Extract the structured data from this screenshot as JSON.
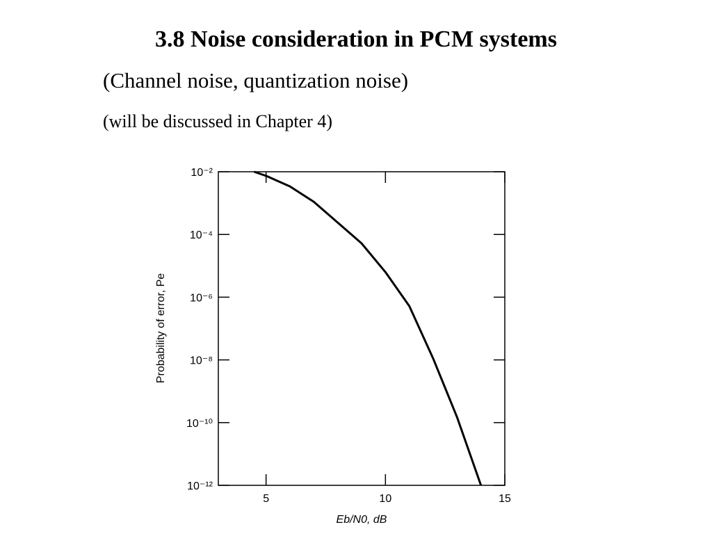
{
  "slide": {
    "title": "3.8 Noise consideration in PCM systems",
    "subtitle": "(Channel noise,  quantization noise)",
    "note": "(will be discussed in Chapter 4)"
  },
  "chart_data": {
    "type": "line",
    "xlabel": "Eb/N0, dB",
    "ylabel": "Probability of error, Pe",
    "x": [
      4.5,
      5,
      6,
      7,
      8,
      9,
      10,
      11,
      12,
      13,
      14
    ],
    "series": [
      {
        "name": "Pe",
        "color": "#000000",
        "values": [
          0.01,
          0.0074,
          0.0034,
          0.0011,
          0.00024,
          5.2e-05,
          6.3e-06,
          5.2e-07,
          1.1e-08,
          1.5e-10,
          1e-12
        ]
      }
    ],
    "xlim": [
      3,
      15
    ],
    "xticks": [
      5,
      10,
      15
    ],
    "ylim": [
      1e-12,
      0.01
    ],
    "yscale": "log",
    "yticks": [
      {
        "value": 1e-12,
        "label": "10⁻¹²"
      },
      {
        "value": 1e-10,
        "label": "10⁻¹⁰"
      },
      {
        "value": 1e-08,
        "label": "10⁻⁸"
      },
      {
        "value": 1e-06,
        "label": "10⁻⁶"
      },
      {
        "value": 0.0001,
        "label": "10⁻⁴"
      },
      {
        "value": 0.01,
        "label": "10⁻²"
      }
    ]
  }
}
